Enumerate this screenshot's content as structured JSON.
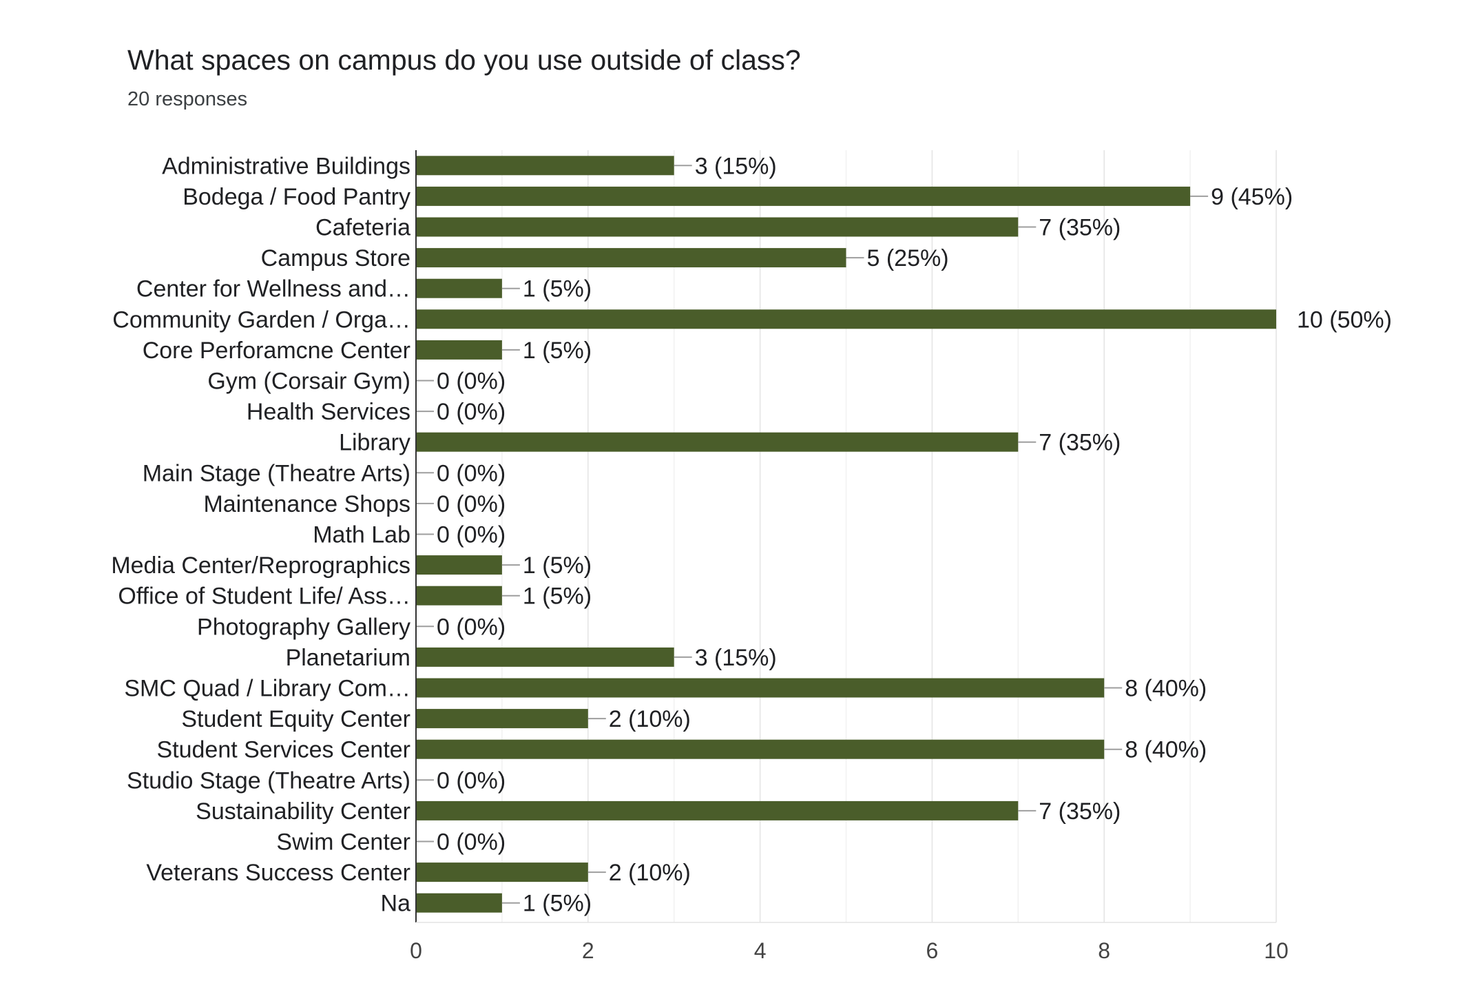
{
  "header": {
    "title": "What spaces on campus do you use outside of class?",
    "responses": "20 responses"
  },
  "chart_data": {
    "type": "bar",
    "orientation": "horizontal",
    "title": "What spaces on campus do you use outside of class?",
    "subtitle": "20 responses",
    "categories": [
      "Administrative Buildings",
      "Bodega / Food Pantry",
      "Cafeteria",
      "Campus Store",
      "Center for Wellness and…",
      "Community Garden / Orga…",
      "Core Perforamcne Center",
      "Gym (Corsair Gym)",
      "Health Services",
      "Library",
      "Main Stage (Theatre Arts)",
      "Maintenance Shops",
      "Math Lab",
      "Media Center/Reprographics",
      "Office of Student Life/ Ass…",
      "Photography Gallery",
      "Planetarium",
      "SMC Quad / Library Com…",
      "Student Equity Center",
      "Student Services Center",
      "Studio Stage (Theatre Arts)",
      "Sustainability Center",
      "Swim Center",
      "Veterans Success Center",
      "Na"
    ],
    "values": [
      3,
      9,
      7,
      5,
      1,
      10,
      1,
      0,
      0,
      7,
      0,
      0,
      0,
      1,
      1,
      0,
      3,
      8,
      2,
      8,
      0,
      7,
      0,
      2,
      1
    ],
    "data_labels": [
      "3 (15%)",
      "9 (45%)",
      "7 (35%)",
      "5 (25%)",
      "1 (5%)",
      "10 (50%)",
      "1 (5%)",
      "0 (0%)",
      "0 (0%)",
      "7 (35%)",
      "0 (0%)",
      "0 (0%)",
      "0 (0%)",
      "1 (5%)",
      "1 (5%)",
      "0 (0%)",
      "3 (15%)",
      "8 (40%)",
      "2 (10%)",
      "8 (40%)",
      "0 (0%)",
      "7 (35%)",
      "0 (0%)",
      "2 (10%)",
      "1 (5%)"
    ],
    "xlim": [
      0,
      10
    ],
    "xticks": [
      0,
      2,
      4,
      6,
      8,
      10
    ],
    "grid": true,
    "legend": "none",
    "bar_color": "#4a5d2a"
  }
}
